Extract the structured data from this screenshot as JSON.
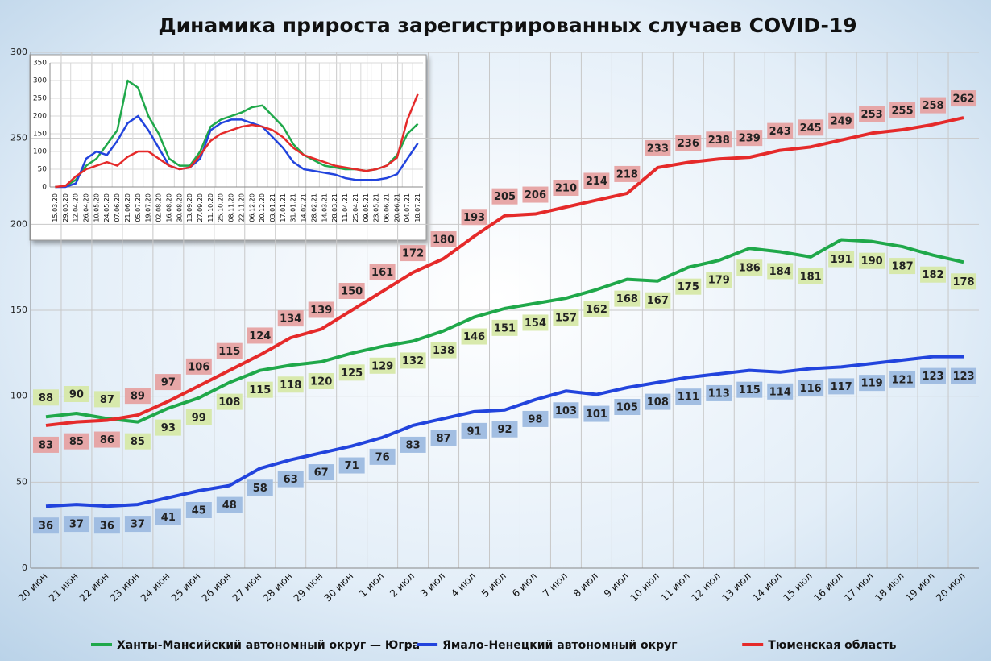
{
  "chart_data": [
    {
      "type": "line",
      "title": "Динамика прироста зарегистрированных случаев COVID-19",
      "categories": [
        "20 июн",
        "21 июн",
        "22 июн",
        "23 июн",
        "24 июн",
        "25 июн",
        "26 июн",
        "27 июн",
        "28 июн",
        "29 июн",
        "30 июн",
        "1 июл",
        "2 июл",
        "3 июл",
        "4 июл",
        "5 июл",
        "6 июл",
        "7 июл",
        "8 июл",
        "9 июл",
        "10 июл",
        "11 июл",
        "12 июл",
        "13 июл",
        "14 июл",
        "15 июл",
        "16 июл",
        "17 июл",
        "18 июл",
        "19 июл",
        "20 июл"
      ],
      "series": [
        {
          "name": "Ханты-Мансийский автономный округ — Югра",
          "color": "#1fa84a",
          "label_color": "#d6e8a8",
          "values": [
            88,
            90,
            87,
            85,
            93,
            99,
            108,
            115,
            118,
            120,
            125,
            129,
            132,
            138,
            146,
            151,
            154,
            157,
            162,
            168,
            167,
            175,
            179,
            186,
            184,
            181,
            191,
            190,
            187,
            182,
            178
          ]
        },
        {
          "name": "Ямало-Ненецкий автономный округ",
          "color": "#2244dd",
          "label_color": "#9dbbe0",
          "values": [
            36,
            37,
            36,
            37,
            41,
            45,
            48,
            58,
            63,
            67,
            71,
            76,
            83,
            87,
            91,
            92,
            98,
            103,
            101,
            105,
            108,
            111,
            113,
            115,
            114,
            116,
            117,
            119,
            121,
            123,
            123
          ]
        },
        {
          "name": "Тюменская область",
          "color": "#e52a2a",
          "label_color": "#e6a2a2",
          "values": [
            83,
            85,
            86,
            89,
            97,
            106,
            115,
            124,
            134,
            139,
            150,
            161,
            172,
            180,
            193,
            205,
            206,
            210,
            214,
            218,
            233,
            236,
            238,
            239,
            243,
            245,
            249,
            253,
            255,
            258,
            262
          ]
        }
      ],
      "ylim": [
        0,
        300
      ],
      "yticks": [
        0,
        50,
        100,
        150,
        200,
        250,
        300
      ],
      "grid": true,
      "data_labels": true,
      "legend": "bottom"
    },
    {
      "type": "line",
      "categories": [
        "15.03.20",
        "29.03.20",
        "12.04.20",
        "26.04.20",
        "10.05.20",
        "24.05.20",
        "07.06.20",
        "21.06.20",
        "05.07.20",
        "19.07.20",
        "02.08.20",
        "16.08.20",
        "30.08.20",
        "13.09.20",
        "27.09.20",
        "11.10.20",
        "25.10.20",
        "08.11.20",
        "22.11.20",
        "06.12.20",
        "20.12.20",
        "03.01.21",
        "17.01.21",
        "31.01.21",
        "14.02.21",
        "28.02.21",
        "14.03.21",
        "28.03.21",
        "11.04.21",
        "25.04.21",
        "09.05.21",
        "23.05.21",
        "06.06.21",
        "20.06.21",
        "04.07.21",
        "18.07.21"
      ],
      "series": [
        {
          "color": "#1fa84a",
          "values": [
            0,
            2,
            20,
            60,
            80,
            120,
            160,
            300,
            280,
            200,
            150,
            80,
            60,
            60,
            100,
            170,
            190,
            200,
            210,
            225,
            230,
            200,
            170,
            120,
            90,
            75,
            60,
            55,
            50,
            50,
            45,
            50,
            60,
            90,
            150,
            178
          ]
        },
        {
          "color": "#2244dd",
          "values": [
            0,
            0,
            10,
            80,
            100,
            90,
            130,
            180,
            200,
            160,
            110,
            60,
            50,
            55,
            80,
            160,
            180,
            190,
            190,
            180,
            170,
            140,
            110,
            70,
            50,
            45,
            40,
            35,
            25,
            20,
            20,
            20,
            25,
            36,
            80,
            123
          ]
        },
        {
          "color": "#e52a2a",
          "values": [
            0,
            3,
            30,
            50,
            60,
            70,
            60,
            85,
            100,
            100,
            80,
            60,
            50,
            55,
            90,
            130,
            150,
            160,
            170,
            175,
            170,
            160,
            140,
            110,
            90,
            80,
            70,
            60,
            55,
            50,
            45,
            50,
            60,
            83,
            190,
            262
          ]
        }
      ],
      "ylim": [
        0,
        350
      ],
      "yticks": [
        0,
        50,
        100,
        150,
        200,
        250,
        300,
        350
      ],
      "grid": true,
      "data_labels": false
    }
  ]
}
